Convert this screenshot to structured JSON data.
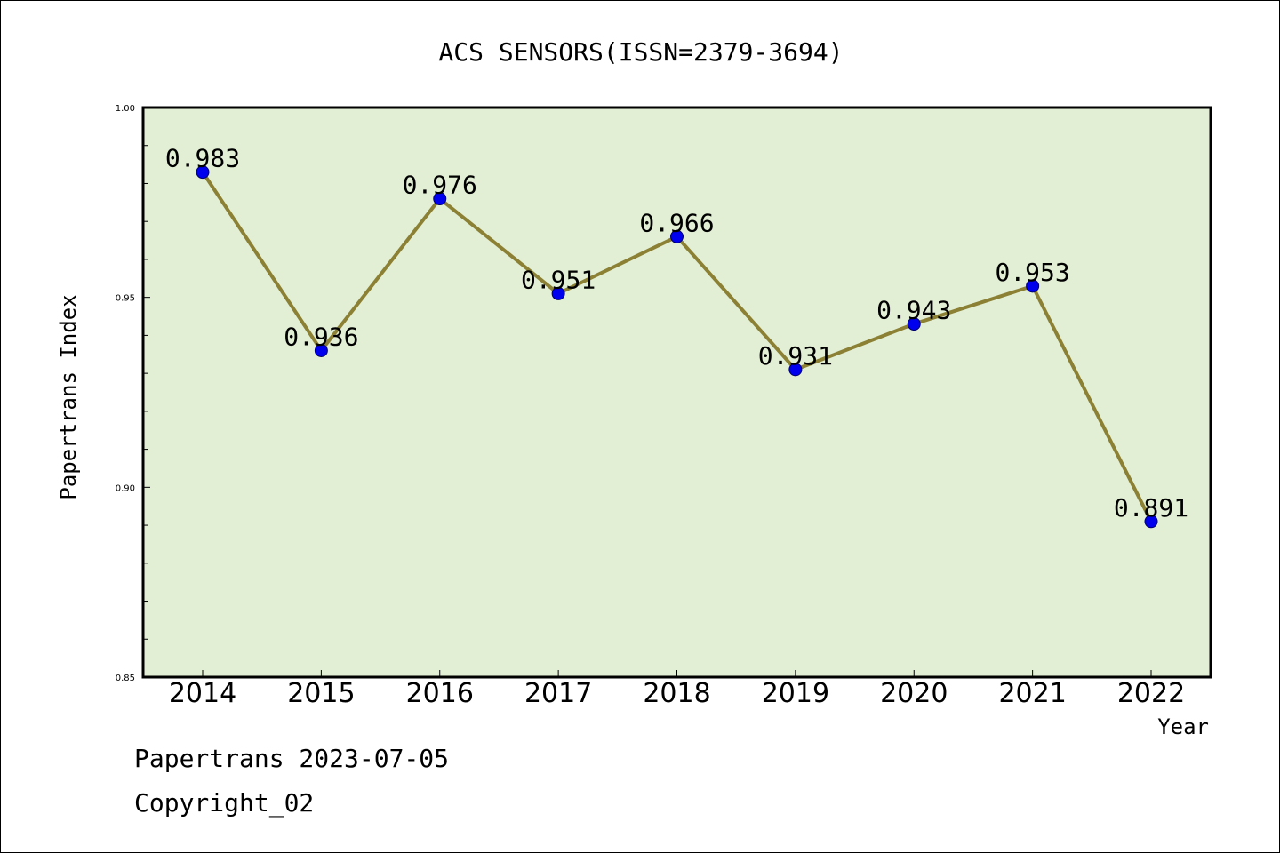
{
  "chart_data": {
    "type": "line",
    "title": "ACS SENSORS(ISSN=2379-3694)",
    "xlabel": "Year",
    "ylabel": "Papertrans Index",
    "categories": [
      "2014",
      "2015",
      "2016",
      "2017",
      "2018",
      "2019",
      "2020",
      "2021",
      "2022"
    ],
    "series": [
      {
        "values": [
          0.983,
          0.936,
          0.976,
          0.951,
          0.966,
          0.931,
          0.943,
          0.953,
          0.891
        ]
      }
    ],
    "data_labels": [
      "0.983",
      "0.936",
      "0.976",
      "0.951",
      "0.966",
      "0.931",
      "0.943",
      "0.953",
      "0.891"
    ],
    "ylim": [
      0.85,
      1.0
    ],
    "yticks": [
      "0.85",
      "0.90",
      "0.95",
      "1.00"
    ],
    "grid": false,
    "colors": {
      "plot_background": "#e2efd5",
      "line": "#8b8034",
      "marker": "#0000ee"
    }
  },
  "footer": {
    "line1": "Papertrans 2023-07-05",
    "line2": "Copyright_02"
  }
}
